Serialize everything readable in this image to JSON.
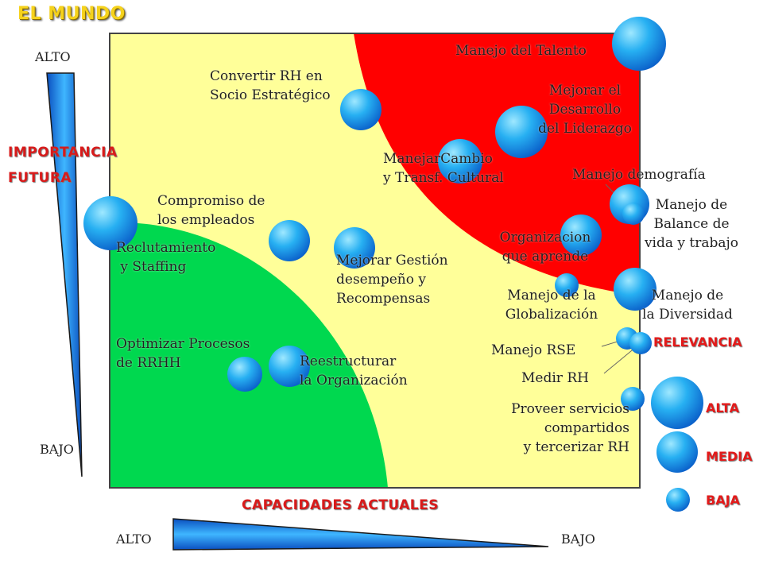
{
  "title": "EL MUNDO",
  "y_axis": {
    "title_line1": "IMPORTANCIA",
    "title_line2": "FUTURA",
    "high": "ALTO",
    "low": "BAJO"
  },
  "x_axis": {
    "title": "CAPACIDADES ACTUALES",
    "high": "ALTO",
    "low": "BAJO"
  },
  "zones": {
    "red": "#ff0000",
    "yellow": "#ffff99",
    "green": "#00d84f"
  },
  "bubble_color": "#1a9be8",
  "legend": {
    "title": "RELEVANCIA",
    "high": "ALTA",
    "medium": "MEDIA",
    "low": "BAJA"
  },
  "items": [
    {
      "text": "Manejo del Talento",
      "relevancia": "ALTA"
    },
    {
      "text": "Convertir RH en\nSocio Estratégico",
      "relevancia": "MEDIA"
    },
    {
      "text": "Mejorar el\nDesarrollo\ndel Liderazgo",
      "relevancia": "ALTA"
    },
    {
      "text": "ManejarCambio\ny Transf. Cultural",
      "relevancia": "ALTA"
    },
    {
      "text": "Manejo demografía",
      "relevancia": "MEDIA"
    },
    {
      "text": "Manejo de\nBalance de\nvida y trabajo",
      "relevancia": "BAJA"
    },
    {
      "text": "Compromiso de\nlos empleados",
      "relevancia": "MEDIA"
    },
    {
      "text": "Reclutamiento\n y Staffing",
      "relevancia": "ALTA"
    },
    {
      "text": "Organizacion\nque aprende",
      "relevancia": "MEDIA"
    },
    {
      "text": "Mejorar Gestión\ndesempeño y\nRecompensas",
      "relevancia": "MEDIA"
    },
    {
      "text": "Manejo de la\nGlobalización",
      "relevancia": "BAJA"
    },
    {
      "text": "Manejo de\nla Diversidad",
      "relevancia": "MEDIA"
    },
    {
      "text": "Manejo RSE",
      "relevancia": "BAJA"
    },
    {
      "text": "Optimizar Procesos\nde RRHH",
      "relevancia": "MEDIA"
    },
    {
      "text": "Reestructurar\nla Organización",
      "relevancia": "MEDIA"
    },
    {
      "text": "Medir RH",
      "relevancia": "BAJA"
    },
    {
      "text": "Proveer servicios\ncompartidos\ny tercerizar RH",
      "relevancia": "BAJA"
    }
  ]
}
